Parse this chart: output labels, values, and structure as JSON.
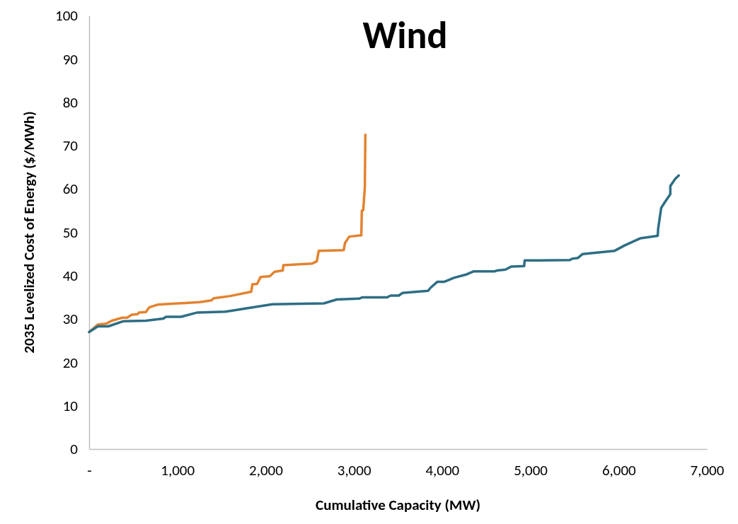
{
  "chart_data": {
    "type": "line",
    "title": "Wind",
    "xlabel": "Cumulative Capacity (MW)",
    "ylabel": "2035 Levelized Cost of Energy ($/MWh)",
    "xlim": [
      0,
      7000
    ],
    "xticks": [
      {
        "value": 0,
        "label": "-"
      },
      {
        "value": 1000,
        "label": "1,000"
      },
      {
        "value": 2000,
        "label": "2,000"
      },
      {
        "value": 3000,
        "label": "3,000"
      },
      {
        "value": 4000,
        "label": "4,000"
      },
      {
        "value": 5000,
        "label": "5,000"
      },
      {
        "value": 6000,
        "label": "6,000"
      },
      {
        "value": 7000,
        "label": "7,000"
      }
    ],
    "ylim": [
      0,
      100
    ],
    "yticks": [
      0,
      10,
      20,
      30,
      40,
      50,
      60,
      70,
      80,
      90,
      100
    ],
    "grid": false,
    "line_style": "solid",
    "marker": "none",
    "series": [
      {
        "color": "#e38330",
        "x": [
          0,
          98,
          191,
          257,
          377,
          430,
          483,
          550,
          563,
          643,
          682,
          775,
          1253,
          1386,
          1412,
          1598,
          1837,
          1850,
          1903,
          1943,
          2049,
          2102,
          2195,
          2200,
          2527,
          2580,
          2601,
          2885,
          2899,
          2947,
          3084,
          3090,
          3106,
          3124,
          3130
        ],
        "values": [
          27.0,
          28.7,
          28.9,
          29.6,
          30.3,
          30.3,
          31.0,
          31.1,
          31.5,
          31.6,
          32.7,
          33.3,
          33.9,
          34.3,
          34.8,
          35.3,
          36.3,
          38.0,
          38.1,
          39.7,
          39.9,
          40.9,
          41.2,
          42.4,
          42.8,
          43.3,
          45.7,
          45.9,
          47.5,
          49.0,
          49.3,
          55.0,
          55.1,
          60.4,
          72.5
        ]
      },
      {
        "color": "#2e6e84",
        "x": [
          0,
          98,
          217,
          390,
          643,
          842,
          868,
          1041,
          1226,
          1545,
          2076,
          2660,
          2806,
          3058,
          3098,
          3377,
          3416,
          3509,
          3549,
          3841,
          3868,
          3947,
          4027,
          4133,
          4279,
          4359,
          4598,
          4624,
          4717,
          4784,
          4929,
          4935,
          5447,
          5474,
          5540,
          5593,
          5951,
          6071,
          6244,
          6443,
          6448,
          6482,
          6522,
          6586,
          6586,
          6641,
          6681
        ],
        "values": [
          27.0,
          28.3,
          28.3,
          29.5,
          29.6,
          30.1,
          30.5,
          30.5,
          31.5,
          31.7,
          33.4,
          33.6,
          34.5,
          34.7,
          35.0,
          35.0,
          35.4,
          35.4,
          36.0,
          36.5,
          37.2,
          38.6,
          38.6,
          39.5,
          40.3,
          41.0,
          41.0,
          41.2,
          41.4,
          42.1,
          42.2,
          43.5,
          43.6,
          43.9,
          44.1,
          45.0,
          45.7,
          47.0,
          48.6,
          49.2,
          50.8,
          55.6,
          56.9,
          58.8,
          60.7,
          62.3,
          63.1
        ]
      }
    ]
  }
}
